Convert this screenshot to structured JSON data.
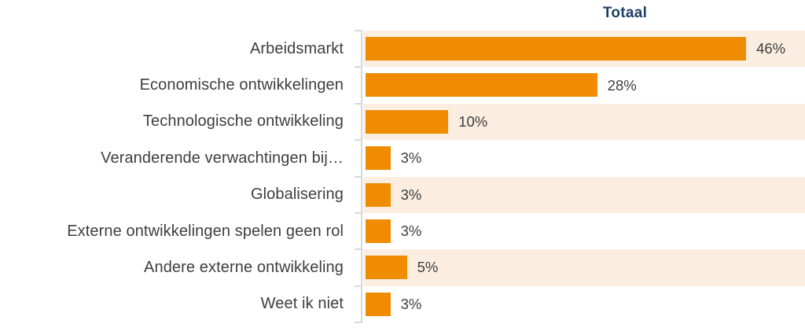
{
  "chart_data": {
    "type": "bar",
    "orientation": "horizontal",
    "title": "Totaal",
    "categories": [
      "Arbeidsmarkt",
      "Economische ontwikkelingen",
      "Technologische ontwikkeling",
      "Veranderende verwachtingen bij…",
      "Globalisering",
      "Externe ontwikkelingen spelen geen rol",
      "Andere externe ontwikkeling",
      "Weet ik niet"
    ],
    "values": [
      46,
      28,
      10,
      3,
      3,
      3,
      5,
      3
    ],
    "value_labels": [
      "46%",
      "28%",
      "10%",
      "3%",
      "3%",
      "3%",
      "5%",
      "3%"
    ],
    "xlabel": "",
    "ylabel": "",
    "xlim": [
      0,
      53.4
    ],
    "grid": false,
    "legend": "none",
    "row_band_pattern": "alternate-start-first",
    "colors": {
      "bar": "#F08C00",
      "row_band": "#FBEEE1",
      "title": "#1F4066",
      "text": "#3E3E3E",
      "axis": "#D8D8D8",
      "background": "#FFFFFF"
    }
  }
}
